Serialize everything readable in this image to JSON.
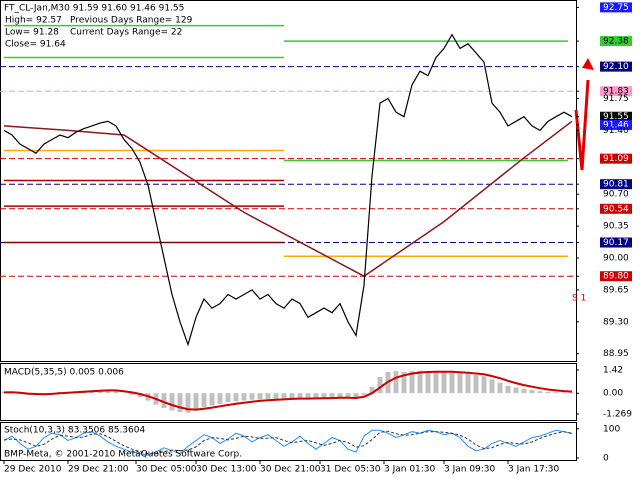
{
  "chart_data": [
    {
      "type": "line",
      "panel": "price",
      "title": "FT_CL-Jan,M30  91.59 91.60 91.46 91.55",
      "info": [
        [
          "High= 92.57",
          "Previous Days Range= 129"
        ],
        [
          "Low= 91.28",
          "Current Days Range= 22"
        ],
        [
          "Close= 91.64"
        ]
      ],
      "color": "#000000",
      "values": [
        91.4,
        91.35,
        91.25,
        91.2,
        91.15,
        91.25,
        91.3,
        91.35,
        91.32,
        91.38,
        91.42,
        91.45,
        91.48,
        91.5,
        91.45,
        91.3,
        91.2,
        91.05,
        90.8,
        90.4,
        90.0,
        89.6,
        89.3,
        89.05,
        89.35,
        89.55,
        89.45,
        89.5,
        89.6,
        89.55,
        89.6,
        89.65,
        89.55,
        89.6,
        89.5,
        89.45,
        89.55,
        89.5,
        89.35,
        89.4,
        89.45,
        89.4,
        89.5,
        89.3,
        89.15,
        89.7,
        90.9,
        91.7,
        91.75,
        91.6,
        91.55,
        91.9,
        92.05,
        92.0,
        92.2,
        92.3,
        92.45,
        92.3,
        92.35,
        92.25,
        92.15,
        91.7,
        91.6,
        91.45,
        91.5,
        91.55,
        91.45,
        91.4,
        91.5,
        91.55,
        91.6,
        91.55
      ],
      "moving_average": {
        "color": "#8b1a1a",
        "x": [
          0,
          8,
          15,
          30,
          45,
          55,
          65,
          71
        ],
        "values": [
          91.45,
          91.4,
          91.35,
          90.5,
          89.8,
          90.4,
          91.1,
          91.5
        ]
      },
      "levels": [
        {
          "value": 92.55,
          "from": 0,
          "to": 35,
          "color": "#33cc33"
        },
        {
          "value": 92.2,
          "from": 0,
          "to": 35,
          "color": "#33cc33"
        },
        {
          "value": 92.38,
          "from": 35,
          "to": 70.5,
          "color": "#33cc33"
        },
        {
          "value": 91.07,
          "from": 35,
          "to": 70.5,
          "color": "#33cc33"
        },
        {
          "value": 91.18,
          "from": 0,
          "to": 35,
          "color": "#ffaa00"
        },
        {
          "value": 90.02,
          "from": 35,
          "to": 70.5,
          "color": "#ffaa00"
        },
        {
          "value": 90.85,
          "from": 0,
          "to": 35,
          "color": "#aa0000"
        },
        {
          "value": 90.57,
          "from": 0,
          "to": 35,
          "color": "#aa0000"
        },
        {
          "value": 90.17,
          "from": 0,
          "to": 35,
          "color": "#800000"
        }
      ],
      "s1_label": "S 1",
      "xlim": [
        0,
        72
      ],
      "xticks": [
        {
          "value": 0,
          "label": "29 Dec 2010"
        },
        {
          "value": 8,
          "label": "29 Dec 21:00"
        },
        {
          "value": 16.5,
          "label": "30 Dec 05:00"
        },
        {
          "value": 24,
          "label": "30 Dec 13:00"
        },
        {
          "value": 32,
          "label": "30 Dec 21:00"
        },
        {
          "value": 39.5,
          "label": "31 Dec 05:30"
        },
        {
          "value": 47.5,
          "label": "3 Jan 01:30"
        },
        {
          "value": 55,
          "label": "3 Jan 09:30"
        },
        {
          "value": 63,
          "label": "3 Jan 17:30"
        }
      ],
      "ylim": [
        88.87,
        92.82
      ],
      "yticks": [
        {
          "value": 92.75,
          "label": "92.75",
          "box": "#1a1aff"
        },
        {
          "value": 92.38,
          "label": "92.38",
          "box": "#33cc33"
        },
        {
          "value": 92.1,
          "label": "92.10",
          "box": "#000080",
          "dashed": true
        },
        {
          "value": 91.83,
          "label": "91.83",
          "box": "#ff99cc",
          "dashed": true
        },
        {
          "value": 91.75,
          "label": "91.75"
        },
        {
          "value": 91.55,
          "label": "91.55",
          "box": "#000000"
        },
        {
          "value": 91.46,
          "label": "91.46",
          "box": "#1a1aff"
        },
        {
          "value": 91.4,
          "label": "91.40"
        },
        {
          "value": 91.09,
          "label": "91.09",
          "box": "#cc0000",
          "dashed": true
        },
        {
          "value": 90.81,
          "label": "90.81",
          "box": "#000080",
          "dashed": true
        },
        {
          "value": 90.7,
          "label": "90.70"
        },
        {
          "value": 90.54,
          "label": "90.54",
          "box": "#cc0000",
          "dashed": true
        },
        {
          "value": 90.35,
          "label": "90.35"
        },
        {
          "value": 90.17,
          "label": "90.17",
          "box": "#000080",
          "dashed": true
        },
        {
          "value": 90,
          "label": "90.00"
        },
        {
          "value": 89.8,
          "label": "89.80",
          "box": "#cc0000",
          "dashed": true
        },
        {
          "value": 89.65,
          "label": "89.65"
        },
        {
          "value": 89.3,
          "label": "89.30"
        },
        {
          "value": 88.95,
          "label": "88.95"
        }
      ]
    },
    {
      "type": "bar",
      "panel": "macd",
      "title": "MACD(5,35,5) 0.005 0.006",
      "color": "#c0c0c0",
      "values": [
        0.1,
        0.05,
        -0.05,
        -0.1,
        -0.12,
        -0.05,
        0.02,
        0.08,
        0.08,
        0.12,
        0.15,
        0.18,
        0.2,
        0.2,
        0.15,
        0.02,
        -0.1,
        -0.25,
        -0.45,
        -0.7,
        -0.9,
        -1.05,
        -1.15,
        -1.2,
        -1.0,
        -0.85,
        -0.75,
        -0.65,
        -0.55,
        -0.5,
        -0.45,
        -0.4,
        -0.38,
        -0.35,
        -0.35,
        -0.33,
        -0.3,
        -0.3,
        -0.33,
        -0.3,
        -0.28,
        -0.28,
        -0.25,
        -0.28,
        -0.3,
        -0.1,
        0.4,
        1.0,
        1.3,
        1.35,
        1.3,
        1.35,
        1.38,
        1.35,
        1.35,
        1.32,
        1.3,
        1.25,
        1.2,
        1.12,
        1.05,
        0.85,
        0.65,
        0.45,
        0.35,
        0.28,
        0.2,
        0.12,
        0.08,
        0.06,
        0.05,
        0.05
      ],
      "signal": {
        "color": "#cc0000",
        "values": [
          0.05,
          0.06,
          0.03,
          -0.02,
          -0.05,
          -0.06,
          -0.04,
          0,
          0.03,
          0.06,
          0.09,
          0.12,
          0.15,
          0.17,
          0.17,
          0.12,
          0.05,
          -0.05,
          -0.18,
          -0.35,
          -0.55,
          -0.72,
          -0.87,
          -0.98,
          -1.0,
          -0.95,
          -0.88,
          -0.8,
          -0.72,
          -0.65,
          -0.58,
          -0.52,
          -0.47,
          -0.43,
          -0.4,
          -0.38,
          -0.35,
          -0.33,
          -0.33,
          -0.32,
          -0.31,
          -0.3,
          -0.28,
          -0.28,
          -0.29,
          -0.22,
          0.0,
          0.35,
          0.7,
          0.95,
          1.1,
          1.2,
          1.27,
          1.3,
          1.32,
          1.32,
          1.31,
          1.29,
          1.26,
          1.21,
          1.16,
          1.05,
          0.92,
          0.76,
          0.62,
          0.5,
          0.4,
          0.31,
          0.23,
          0.17,
          0.13,
          0.1
        ]
      },
      "ylim": [
        -1.64,
        1.79
      ],
      "yticks": [
        1.42,
        {
          "value": 0,
          "label": "0.00"
        },
        -1.269
      ]
    },
    {
      "type": "line",
      "panel": "stoch",
      "title": "Stoch(10,3,3) 83.3506 85.3604",
      "copyright": "BMP-Meta, © 2001-2010 MetaQuotes Software Corp.",
      "series": [
        {
          "name": "Main",
          "color": "#1e90ff",
          "values": [
            60,
            75,
            50,
            30,
            40,
            70,
            85,
            80,
            60,
            70,
            85,
            90,
            75,
            55,
            40,
            30,
            20,
            15,
            10,
            20,
            35,
            25,
            15,
            40,
            60,
            80,
            70,
            50,
            65,
            85,
            75,
            55,
            70,
            80,
            60,
            40,
            55,
            75,
            50,
            30,
            50,
            70,
            60,
            30,
            20,
            75,
            95,
            95,
            85,
            70,
            80,
            90,
            85,
            95,
            90,
            80,
            85,
            70,
            40,
            25,
            30,
            50,
            60,
            50,
            40,
            55,
            70,
            75,
            85,
            95,
            90,
            83
          ]
        },
        {
          "name": "Signal",
          "color": "#333333",
          "values": [
            62,
            65,
            62,
            52,
            40,
            47,
            65,
            78,
            75,
            70,
            72,
            82,
            83,
            73,
            57,
            42,
            30,
            22,
            15,
            15,
            22,
            27,
            25,
            27,
            38,
            60,
            70,
            67,
            62,
            67,
            75,
            72,
            67,
            68,
            70,
            60,
            52,
            57,
            60,
            52,
            43,
            50,
            60,
            53,
            37,
            42,
            63,
            88,
            92,
            83,
            78,
            80,
            85,
            90,
            90,
            88,
            85,
            78,
            65,
            45,
            32,
            35,
            47,
            53,
            50,
            48,
            55,
            67,
            77,
            85,
            90,
            85
          ]
        }
      ],
      "ylim": [
        -7,
        120
      ],
      "yticks": [
        100,
        0
      ]
    }
  ]
}
